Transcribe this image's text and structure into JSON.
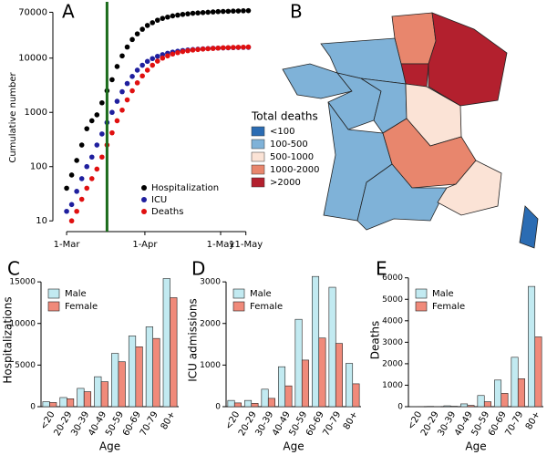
{
  "chart_data": [
    {
      "type": "scatter",
      "label": "A",
      "y_label": "Cumulative number",
      "log_y": true,
      "x": [
        0,
        2,
        4,
        6,
        8,
        10,
        12,
        14,
        16,
        18,
        20,
        22,
        24,
        26,
        28,
        30,
        32,
        34,
        36,
        38,
        40,
        42,
        44,
        46,
        48,
        50,
        52,
        54,
        56,
        58,
        60,
        62,
        64,
        66,
        68,
        70,
        72
      ],
      "xlim": [
        -4,
        74
      ],
      "xticks": [
        {
          "value": 0,
          "label": "1-Mar"
        },
        {
          "value": 31,
          "label": "1-Apr"
        },
        {
          "value": 61,
          "label": "1-May"
        },
        {
          "value": 71,
          "label": "11-May"
        }
      ],
      "ylim": [
        8,
        80000
      ],
      "yticks": [
        10,
        100,
        1000,
        10000,
        70000
      ],
      "vline": 16,
      "vline_color": "#1b6b1b",
      "legend_corner": "bottom right",
      "series": [
        {
          "name": "Hospitalization",
          "color": "#000000",
          "values": [
            40,
            70,
            130,
            250,
            500,
            700,
            900,
            1500,
            2500,
            4000,
            7000,
            11000,
            16000,
            22000,
            28000,
            34000,
            40000,
            45000,
            50000,
            54000,
            57000,
            60000,
            62000,
            64000,
            65500,
            67000,
            68000,
            69000,
            70000,
            71000,
            72000,
            72500,
            73000,
            73500,
            74000,
            74500,
            75000
          ]
        },
        {
          "name": "ICU",
          "color": "#1f1f9e",
          "values": [
            15,
            20,
            35,
            60,
            100,
            150,
            250,
            400,
            650,
            1000,
            1600,
            2400,
            3400,
            4600,
            6000,
            7400,
            8700,
            9800,
            10800,
            11600,
            12300,
            12900,
            13400,
            13800,
            14100,
            14400,
            14600,
            14800,
            15000,
            15200,
            15300,
            15400,
            15500,
            15600,
            15700,
            15750,
            15800
          ]
        },
        {
          "name": "Deaths",
          "color": "#e01010",
          "values": [
            null,
            10,
            15,
            25,
            40,
            60,
            90,
            150,
            250,
            420,
            700,
            1100,
            1700,
            2500,
            3500,
            4700,
            6000,
            7400,
            8800,
            10000,
            11000,
            11900,
            12600,
            13200,
            13700,
            14100,
            14400,
            14700,
            14900,
            15100,
            15300,
            15500,
            15600,
            15700,
            15800,
            15900,
            16000
          ]
        }
      ]
    },
    {
      "type": "choropleth",
      "label": "B",
      "legend_title": "Total deaths",
      "legend": [
        {
          "label": "<100",
          "color": "#2b6cb3"
        },
        {
          "label": "100-500",
          "color": "#7fb2d8"
        },
        {
          "label": "500-1000",
          "color": "#fbe3d6"
        },
        {
          "label": "1000-2000",
          "color": "#e8866d"
        },
        {
          "label": ">2000",
          "color": "#b3202e"
        }
      ]
    },
    {
      "type": "bar",
      "label": "C",
      "y_label": "Hospitalizations",
      "x_label": "Age",
      "categories": [
        "<20",
        "20-29",
        "30-39",
        "40-49",
        "50-59",
        "60-69",
        "70-79",
        "80+"
      ],
      "ylim": [
        0,
        16000
      ],
      "yticks": [
        0,
        5000,
        10000,
        15000
      ],
      "series": [
        {
          "name": "Male",
          "color": "#c2eaf1",
          "values": [
            600,
            1100,
            2200,
            3600,
            6400,
            8500,
            9600,
            15400
          ]
        },
        {
          "name": "Female",
          "color": "#f08a7a",
          "values": [
            500,
            950,
            1800,
            3000,
            5400,
            7200,
            8200,
            13100
          ]
        }
      ]
    },
    {
      "type": "bar",
      "label": "D",
      "y_label": "ICU admissions",
      "x_label": "Age",
      "categories": [
        "<20",
        "20-29",
        "30-39",
        "40-49",
        "50-59",
        "60-69",
        "70-79",
        "80+"
      ],
      "ylim": [
        0,
        3200
      ],
      "yticks": [
        0,
        1000,
        2000,
        3000
      ],
      "series": [
        {
          "name": "Male",
          "color": "#c2eaf1",
          "values": [
            150,
            150,
            420,
            960,
            2100,
            3130,
            2870,
            1040
          ]
        },
        {
          "name": "Female",
          "color": "#f08a7a",
          "values": [
            90,
            80,
            200,
            500,
            1120,
            1650,
            1520,
            550
          ]
        }
      ]
    },
    {
      "type": "bar",
      "label": "E",
      "y_label": "Deaths",
      "x_label": "Age",
      "categories": [
        "<20",
        "20-29",
        "30-39",
        "40-49",
        "50-59",
        "60-69",
        "70-79",
        "80+"
      ],
      "ylim": [
        0,
        6200
      ],
      "yticks": [
        0,
        1000,
        2000,
        3000,
        4000,
        5000,
        6000
      ],
      "series": [
        {
          "name": "Male",
          "color": "#c2eaf1",
          "values": [
            5,
            15,
            40,
            130,
            520,
            1240,
            2300,
            5600
          ]
        },
        {
          "name": "Female",
          "color": "#f08a7a",
          "values": [
            3,
            8,
            20,
            60,
            230,
            620,
            1300,
            3250
          ]
        }
      ]
    }
  ]
}
